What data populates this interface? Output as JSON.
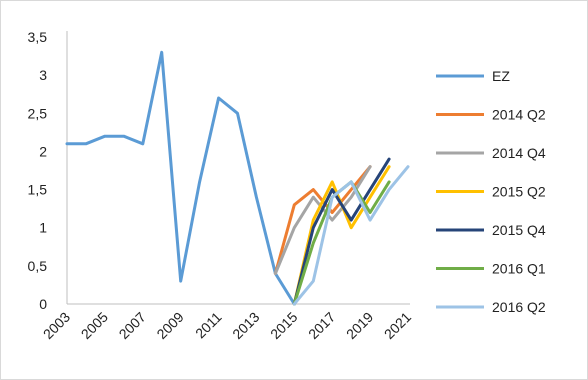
{
  "chart_data": {
    "type": "line",
    "title": "",
    "xlabel": "",
    "ylabel": "",
    "x": [
      2003,
      2004,
      2005,
      2006,
      2007,
      2008,
      2009,
      2010,
      2011,
      2012,
      2013,
      2014,
      2015,
      2016,
      2017,
      2018,
      2019,
      2020,
      2021
    ],
    "x_tick_labels": [
      "2003",
      "2005",
      "2007",
      "2009",
      "2011",
      "2013",
      "2015",
      "2017",
      "2019",
      "2021"
    ],
    "y_tick_labels": [
      "0",
      "0,5",
      "1",
      "1,5",
      "2",
      "2,5",
      "3",
      "3,5"
    ],
    "ylim": [
      0,
      3.5
    ],
    "grid": false,
    "legend_position": "right",
    "series": [
      {
        "name": "EZ",
        "color": "#5b9bd5",
        "values": [
          2.1,
          2.1,
          2.2,
          2.2,
          2.1,
          3.3,
          0.3,
          1.6,
          2.7,
          2.5,
          1.4,
          0.4,
          0.0,
          null,
          null,
          null,
          null,
          null,
          null
        ]
      },
      {
        "name": "2014 Q2",
        "color": "#ed7d31",
        "values": [
          null,
          null,
          null,
          null,
          null,
          null,
          null,
          null,
          null,
          null,
          null,
          0.4,
          1.3,
          1.5,
          1.2,
          1.5,
          1.8,
          null,
          null
        ]
      },
      {
        "name": "2014 Q4",
        "color": "#a5a5a5",
        "values": [
          null,
          null,
          null,
          null,
          null,
          null,
          null,
          null,
          null,
          null,
          null,
          0.4,
          1.0,
          1.4,
          1.1,
          1.4,
          1.8,
          null,
          null
        ]
      },
      {
        "name": "2015 Q2",
        "color": "#ffc000",
        "values": [
          null,
          null,
          null,
          null,
          null,
          null,
          null,
          null,
          null,
          null,
          null,
          null,
          0.0,
          1.1,
          1.6,
          1.0,
          1.4,
          1.8,
          null
        ]
      },
      {
        "name": "2015 Q4",
        "color": "#264478",
        "values": [
          null,
          null,
          null,
          null,
          null,
          null,
          null,
          null,
          null,
          null,
          null,
          null,
          0.0,
          1.0,
          1.5,
          1.1,
          1.5,
          1.9,
          null
        ]
      },
      {
        "name": "2016 Q1",
        "color": "#70ad47",
        "values": [
          null,
          null,
          null,
          null,
          null,
          null,
          null,
          null,
          null,
          null,
          null,
          null,
          0.0,
          0.8,
          1.4,
          1.6,
          1.2,
          1.6,
          null
        ]
      },
      {
        "name": "2016 Q2",
        "color": "#9dc3e6",
        "values": [
          null,
          null,
          null,
          null,
          null,
          null,
          null,
          null,
          null,
          null,
          null,
          null,
          0.0,
          0.3,
          1.4,
          1.6,
          1.1,
          1.5,
          1.8
        ]
      }
    ]
  }
}
